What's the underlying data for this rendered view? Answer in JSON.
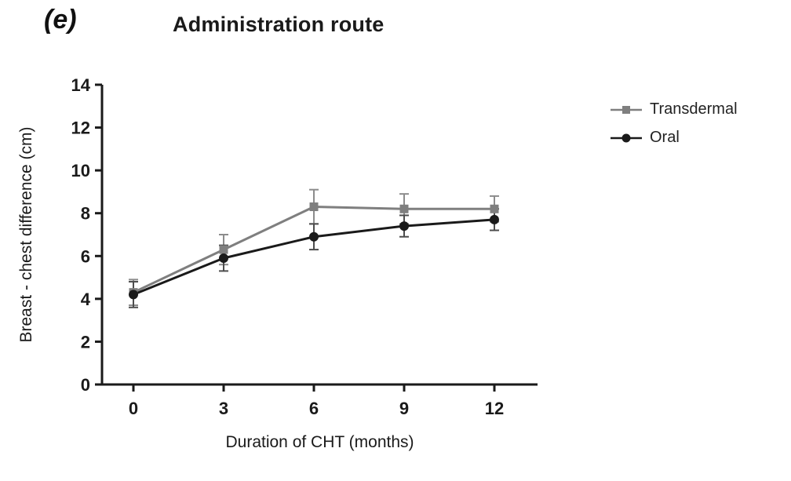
{
  "panel_label": "(e)",
  "title": "Administration route",
  "chart_data": {
    "type": "line",
    "x": [
      0,
      3,
      6,
      9,
      12
    ],
    "xlabel": "Duration of CHT (months)",
    "ylabel": "Breast - chest difference (cm)",
    "ylim": [
      0,
      14
    ],
    "ytick_step": 2,
    "legend_position": "right",
    "grid": false,
    "series": [
      {
        "name": "Transdermal",
        "values": [
          4.3,
          6.3,
          8.3,
          8.2,
          8.2
        ],
        "errors": [
          0.6,
          0.7,
          0.8,
          0.7,
          0.6
        ],
        "color": "#7f7f7f",
        "error_color": "#8c8c8c",
        "marker": "square"
      },
      {
        "name": "Oral",
        "values": [
          4.2,
          5.9,
          6.9,
          7.4,
          7.7
        ],
        "errors": [
          0.6,
          0.6,
          0.6,
          0.5,
          0.5
        ],
        "color": "#1a1a1a",
        "error_color": "#4d4d4d",
        "marker": "circle"
      }
    ],
    "axis_color": "#1a1a1a"
  }
}
